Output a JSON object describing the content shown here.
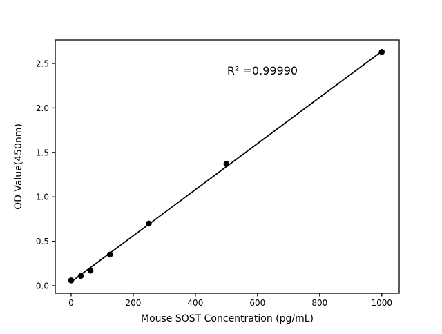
{
  "figure": {
    "background_color": "#ffffff",
    "foreground_color": "#000000"
  },
  "chart_data": {
    "type": "scatter",
    "title": "",
    "xlabel": "Mouse SOST Concentration (pg/mL)",
    "ylabel": "OD Value(450nm)",
    "annotation": {
      "text": "R² =0.99990",
      "x": 615,
      "y": 2.42
    },
    "x": [
      0,
      31.25,
      62.5,
      125,
      250,
      500,
      1000
    ],
    "y": [
      0.06,
      0.11,
      0.17,
      0.35,
      0.7,
      1.37,
      2.63
    ],
    "fit_line": {
      "x": [
        0,
        1000
      ],
      "y": [
        0.043,
        2.637
      ]
    },
    "xlim": [
      -51,
      1056
    ],
    "ylim": [
      -0.085,
      2.764
    ],
    "xticks": [
      0,
      200,
      400,
      600,
      800,
      1000
    ],
    "yticks": [
      0.0,
      0.5,
      1.0,
      1.5,
      2.0,
      2.5
    ],
    "grid": false,
    "legend": null,
    "marker_color": "#000000",
    "line_color": "#000000"
  }
}
